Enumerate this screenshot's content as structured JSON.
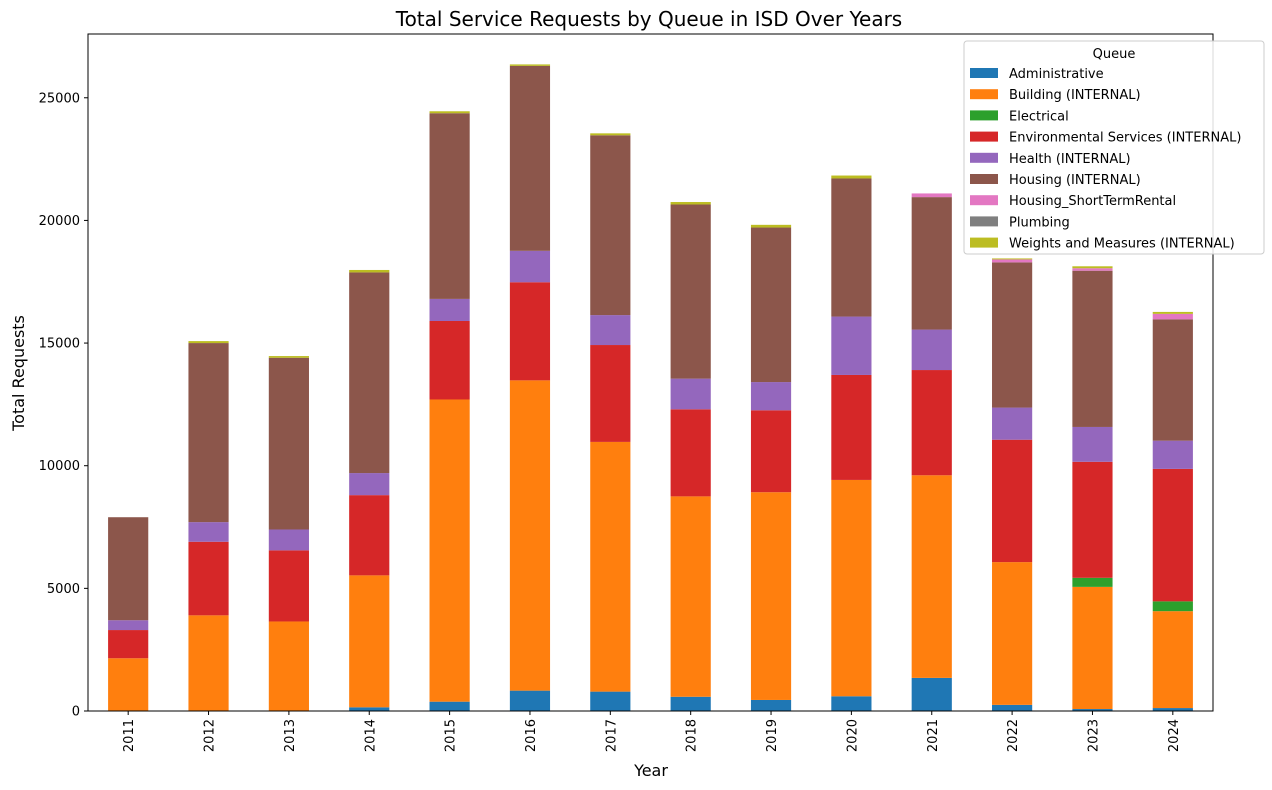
{
  "chart_data": {
    "type": "bar",
    "stacked": true,
    "title": "Total Service Requests by Queue in ISD Over Years",
    "xlabel": "Year",
    "ylabel": "Total Requests",
    "ylim": [
      0,
      27600
    ],
    "yticks": [
      0,
      5000,
      10000,
      15000,
      20000,
      25000
    ],
    "grid": false,
    "legend": {
      "title": "Queue",
      "placement": "top-right"
    },
    "categories": [
      "2011",
      "2012",
      "2013",
      "2014",
      "2015",
      "2016",
      "2017",
      "2018",
      "2019",
      "2020",
      "2021",
      "2022",
      "2023",
      "2024"
    ],
    "series": [
      {
        "name": "Administrative",
        "color": "#1f77b4",
        "values": [
          0,
          0,
          0,
          150,
          380,
          830,
          790,
          580,
          450,
          600,
          1350,
          250,
          80,
          120
        ]
      },
      {
        "name": "Building (INTERNAL)",
        "color": "#ff7f0e",
        "values": [
          2150,
          3900,
          3650,
          5380,
          12320,
          12650,
          10180,
          8170,
          8470,
          8820,
          8260,
          5820,
          4980,
          3950
        ]
      },
      {
        "name": "Electrical",
        "color": "#2ca02c",
        "values": [
          0,
          0,
          0,
          0,
          0,
          0,
          0,
          0,
          0,
          0,
          0,
          0,
          370,
          400
        ]
      },
      {
        "name": "Environmental Services (INTERNAL)",
        "color": "#d62728",
        "values": [
          1150,
          3000,
          2900,
          3270,
          3200,
          4000,
          3950,
          3550,
          3340,
          4280,
          4290,
          4990,
          4730,
          5400
        ]
      },
      {
        "name": "Health (INTERNAL)",
        "color": "#9467bd",
        "values": [
          400,
          800,
          850,
          900,
          900,
          1280,
          1220,
          1250,
          1150,
          2380,
          1650,
          1310,
          1420,
          1150
        ]
      },
      {
        "name": "Housing (INTERNAL)",
        "color": "#8c564b",
        "values": [
          4200,
          7300,
          7000,
          8180,
          7570,
          7540,
          7330,
          7100,
          6300,
          5630,
          5400,
          5920,
          6370,
          4950
        ]
      },
      {
        "name": "Housing_ShortTermRental",
        "color": "#e377c2",
        "values": [
          0,
          0,
          0,
          0,
          0,
          0,
          0,
          0,
          0,
          0,
          150,
          120,
          100,
          220
        ]
      },
      {
        "name": "Plumbing",
        "color": "#7f7f7f",
        "values": [
          0,
          0,
          0,
          0,
          0,
          0,
          0,
          0,
          0,
          0,
          0,
          0,
          0,
          0
        ]
      },
      {
        "name": "Weights and Measures (INTERNAL)",
        "color": "#bcbd22",
        "values": [
          0,
          80,
          70,
          100,
          80,
          60,
          80,
          100,
          110,
          120,
          0,
          40,
          80,
          80
        ]
      }
    ]
  }
}
